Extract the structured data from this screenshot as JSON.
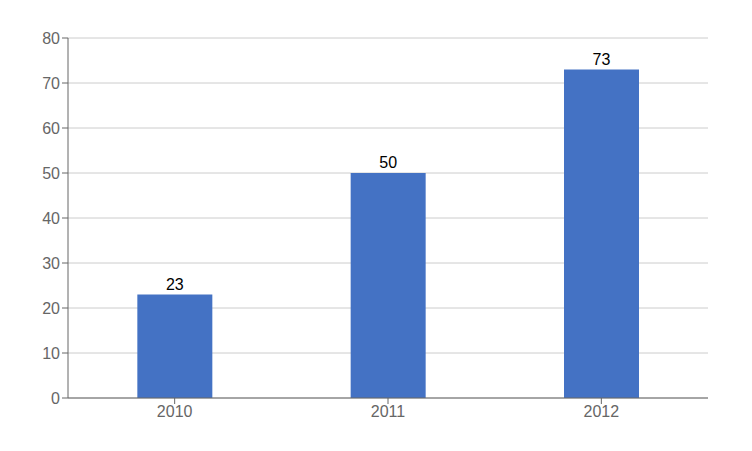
{
  "chart_data": {
    "type": "bar",
    "categories": [
      "2010",
      "2011",
      "2012"
    ],
    "values": [
      23,
      50,
      73
    ],
    "color": "#4472C4",
    "ylim": [
      0,
      80
    ],
    "yticks": [
      0,
      10,
      20,
      30,
      40,
      50,
      60,
      70,
      80
    ],
    "grid": true,
    "data_labels": true
  }
}
